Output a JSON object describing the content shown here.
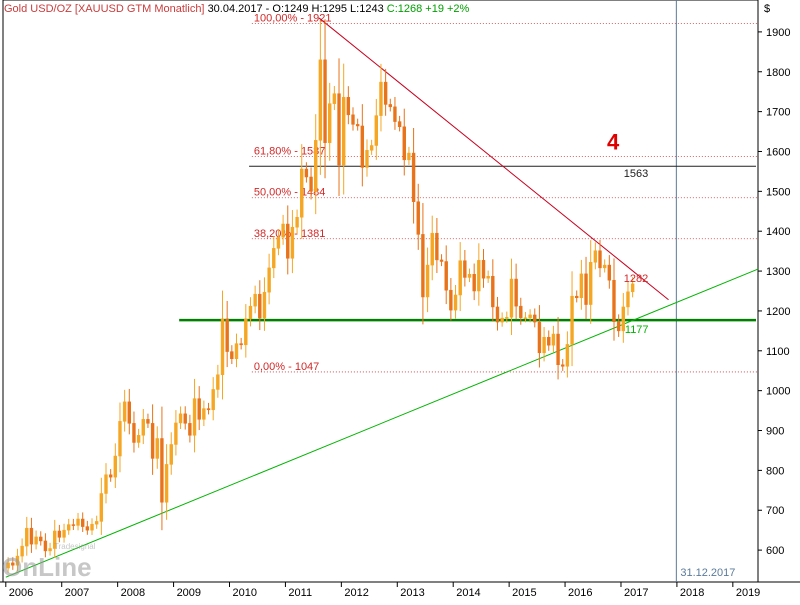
{
  "header": {
    "symbol": "Gold USD/OZ [XAUUSD GTM Monatlich]",
    "ohlc": "30.04.2017 - O:1249 H:1295 L:1243",
    "change": "C:1268 +19 +2%"
  },
  "watermark": {
    "brand_small": "Tradesignal",
    "brand_big": "OnLine"
  },
  "colors": {
    "up_candle": "#f5a623",
    "down_candle": "#e8731a",
    "trend_green": "#00b400",
    "support_green": "#008000",
    "resistance_red": "#c8001e",
    "fib_label": "#d22828",
    "fib_line": "#c83232",
    "date_line": "#5a7a9a"
  },
  "chart_data": {
    "type": "candlestick",
    "title": "Gold USD/OZ [XAUUSD GTM Monatlich]",
    "y_axis_title": "$",
    "ylim": [
      520,
      1980
    ],
    "xlim": [
      2005.95,
      2019.45
    ],
    "y_ticks": [
      600,
      700,
      800,
      900,
      1000,
      1100,
      1200,
      1300,
      1400,
      1500,
      1600,
      1700,
      1800,
      1900
    ],
    "x_ticks": [
      2006,
      2007,
      2008,
      2009,
      2010,
      2011,
      2012,
      2013,
      2014,
      2015,
      2016,
      2017,
      2018,
      2019
    ],
    "monthly_close": [
      568,
      562,
      585,
      610,
      655,
      615,
      633,
      623,
      598,
      604,
      648,
      632,
      650,
      664,
      662,
      678,
      659,
      650,
      665,
      672,
      742,
      789,
      783,
      836,
      923,
      972,
      918,
      870,
      888,
      928,
      918,
      830,
      880,
      720,
      815,
      865,
      919,
      942,
      918,
      888,
      980,
      928,
      955,
      952,
      1003,
      1040,
      1180,
      1098,
      1080,
      1118,
      1115,
      1180,
      1212,
      1242,
      1182,
      1247,
      1308,
      1357,
      1385,
      1418,
      1332,
      1410,
      1435,
      1556,
      1536,
      1500,
      1628,
      1830,
      1622,
      1720,
      1745,
      1566,
      1736,
      1692,
      1668,
      1664,
      1560,
      1603,
      1615,
      1690,
      1774,
      1718,
      1712,
      1675,
      1662,
      1579,
      1596,
      1474,
      1392,
      1235,
      1315,
      1395,
      1328,
      1324,
      1252,
      1202,
      1240,
      1326,
      1284,
      1292,
      1250,
      1327,
      1282,
      1287,
      1210,
      1172,
      1182,
      1184,
      1280,
      1212,
      1183,
      1183,
      1190,
      1172,
      1095,
      1134,
      1114,
      1142,
      1065,
      1061,
      1116,
      1237,
      1233,
      1293,
      1216,
      1322,
      1351,
      1308,
      1315,
      1277,
      1173,
      1150,
      1210,
      1248,
      1268
    ],
    "reference_levels": [
      {
        "label": "100,00% - 1921",
        "value": 1921
      },
      {
        "label": "61,80% - 1587",
        "value": 1587
      },
      {
        "label": "50,00% - 1484",
        "value": 1484
      },
      {
        "label": "38,20% - 1381",
        "value": 1381
      },
      {
        "label": "0,00% - 1047",
        "value": 1047
      },
      {
        "label": "1563",
        "value": 1563
      },
      {
        "label": "1177",
        "value": 1177
      }
    ],
    "trendlines": [
      {
        "name": "uptrend",
        "from": [
          2006.0,
          532
        ],
        "to": [
          2019.45,
          1305
        ]
      },
      {
        "name": "downtrend",
        "from": [
          2011.6,
          1935
        ],
        "to": [
          2017.85,
          1228
        ]
      }
    ],
    "annotations": [
      {
        "text": "4",
        "x": 2016.75,
        "y": 1605
      },
      {
        "text": "1282",
        "x": 2017.05,
        "y": 1282
      },
      {
        "text": "31.12.2017",
        "x": 2018.0,
        "y": 560
      }
    ],
    "vertical_marker": 2017.99
  }
}
